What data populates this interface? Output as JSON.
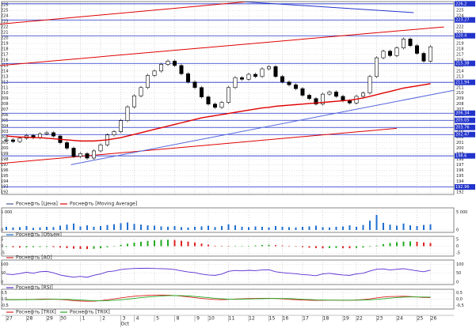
{
  "chart_data": {
    "type": "candlestick",
    "series": [
      {
        "name": "Роснефть [Цена]",
        "color": "#4a5a8a",
        "values": [
          201.5,
          201.2,
          201.8,
          202.3,
          201.9,
          202.6,
          202.8,
          202.2,
          201.0,
          200.0,
          198.5,
          199.0,
          198.2,
          199.5,
          200.6,
          202.4,
          203.0,
          205.0,
          207.5,
          209.5,
          211.0,
          213.2,
          214.0,
          215.2,
          215.8,
          215.0,
          213.5,
          212.0,
          211.0,
          209.3,
          208.0,
          207.4,
          208.3,
          211.0,
          212.8,
          212.5,
          213.4,
          213.0,
          214.4,
          214.8,
          213.0,
          212.0,
          211.5,
          210.8,
          209.6,
          209.0,
          208.0,
          209.8,
          210.2,
          209.4,
          208.6,
          208.2,
          209.4,
          210.0,
          213.0,
          216.4,
          217.6,
          216.8,
          218.2,
          219.8,
          218.6,
          217.2,
          215.8,
          218.4
        ]
      },
      {
        "name": "Роснефть [Moving Average]",
        "color": "#e00000",
        "values": [
          202.2,
          202.1,
          202.0,
          202.0,
          201.9,
          201.9,
          201.8,
          201.7,
          201.6,
          201.5,
          201.4,
          201.3,
          201.3,
          201.3,
          201.4,
          201.5,
          201.7,
          201.9,
          202.2,
          202.5,
          202.8,
          203.1,
          203.4,
          203.7,
          204.0,
          204.3,
          204.6,
          204.9,
          205.2,
          205.5,
          205.7,
          205.9,
          206.1,
          206.3,
          206.5,
          206.7,
          206.9,
          207.1,
          207.3,
          207.4,
          207.6,
          207.7,
          207.8,
          207.9,
          208.0,
          208.1,
          208.2,
          208.3,
          208.4,
          208.5,
          208.6,
          208.7,
          208.9,
          209.1,
          209.4,
          209.7,
          210.0,
          210.3,
          210.6,
          210.9,
          211.1,
          211.3,
          211.5,
          211.7
        ]
      }
    ],
    "ylim": [
      191.6,
      226.6
    ],
    "yticks": [
      192,
      193,
      194,
      195,
      196,
      197,
      198,
      199,
      200,
      201,
      202,
      203,
      204,
      205,
      206,
      207,
      208,
      209,
      210,
      211,
      212,
      213,
      214,
      215,
      216,
      217,
      218,
      219,
      220,
      221,
      222,
      223,
      224,
      225,
      226
    ],
    "grid": true,
    "levels": [
      226.2,
      223.27,
      220.4,
      215.38,
      211.94,
      206.34,
      205.05,
      203.76,
      202.47,
      198.6,
      192.96
    ],
    "level_color": "#2233cc",
    "trendlines": [
      {
        "color": "#e00000",
        "x": [
          -1,
          35.5
        ],
        "y": [
          222.5,
          226.55
        ]
      },
      {
        "color": "#2233cc",
        "x": [
          35.5,
          60.5
        ],
        "y": [
          226.55,
          224.6
        ]
      },
      {
        "color": "#e00000",
        "x": [
          -1,
          65
        ],
        "y": [
          215,
          222
        ]
      },
      {
        "color": "#e00000",
        "x": [
          -1,
          58
        ],
        "y": [
          197.2,
          203.6
        ]
      },
      {
        "color": "#5566dd",
        "x": [
          9.6,
          66.5
        ],
        "y": [
          197,
          210.5
        ]
      }
    ],
    "xticks": [
      {
        "value": 0,
        "label": "27"
      },
      {
        "value": 3,
        "label": "28"
      },
      {
        "value": 6,
        "label": "29"
      },
      {
        "value": 8,
        "label": "30"
      },
      {
        "value": 11,
        "label": "1"
      },
      {
        "value": 14,
        "label": "2"
      },
      {
        "value": 17,
        "label": "3"
      },
      {
        "value": 19,
        "label": "4"
      },
      {
        "value": 22,
        "label": "5"
      },
      {
        "value": 25,
        "label": "8"
      },
      {
        "value": 28,
        "label": "9"
      },
      {
        "value": 30,
        "label": "10"
      },
      {
        "value": 33,
        "label": "11"
      },
      {
        "value": 36,
        "label": "12"
      },
      {
        "value": 39,
        "label": "15"
      },
      {
        "value": 41,
        "label": "16"
      },
      {
        "value": 44,
        "label": "17"
      },
      {
        "value": 47,
        "label": "18"
      },
      {
        "value": 50,
        "label": "19"
      },
      {
        "value": 52,
        "label": "22"
      },
      {
        "value": 55,
        "label": "23"
      },
      {
        "value": 58,
        "label": "24"
      },
      {
        "value": 61,
        "label": "25"
      },
      {
        "value": 63,
        "label": "26"
      }
    ],
    "month_label": {
      "value": 17,
      "label": "Oct"
    },
    "panels": [
      {
        "type": "bar",
        "ylim": [
          0,
          5500
        ],
        "yticks": [
          {
            "value": 5000,
            "label": "5 000"
          },
          0
        ],
        "series": [
          {
            "name": "Роснефть [Объем]",
            "color": "#1f6fd0",
            "values": [
              900,
              700,
              800,
              1100,
              600,
              700,
              900,
              800,
              1200,
              1500,
              1800,
              1000,
              1300,
              900,
              1100,
              1400,
              1600,
              1900,
              2100,
              1700,
              1500,
              1300,
              1200,
              1000,
              900,
              1100,
              800,
              700,
              900,
              1000,
              1200,
              800,
              1100,
              1600,
              1300,
              900,
              800,
              1000,
              900,
              700,
              1100,
              900,
              800,
              700,
              900,
              1000,
              1200,
              800,
              700,
              900,
              1000,
              1300,
              900,
              1400,
              2600,
              4200,
              2000,
              1500,
              1200,
              1800,
              1300,
              1100,
              1400,
              1600
            ]
          }
        ]
      },
      {
        "type": "ao",
        "ylim": [
          -5.5,
          5.5
        ],
        "yticks": [
          5,
          0,
          -5
        ],
        "up_color": "#22aa22",
        "down_color": "#dd2222",
        "series": [
          {
            "name": "Роснефть [AO]",
            "color": "#dd2222",
            "values": [
              -0.5,
              -0.8,
              -1.0,
              -0.9,
              -0.7,
              -0.6,
              -0.5,
              -0.7,
              -1.0,
              -1.4,
              -1.8,
              -2.0,
              -2.1,
              -1.9,
              -1.5,
              -0.8,
              0.2,
              1.0,
              1.8,
              2.6,
              3.3,
              3.9,
              4.3,
              4.6,
              4.7,
              4.5,
              4.0,
              3.4,
              2.7,
              1.9,
              1.1,
              0.4,
              -0.1,
              -0.3,
              -0.2,
              0,
              0.3,
              0.6,
              0.9,
              1.0,
              0.8,
              0.5,
              0.1,
              -0.3,
              -0.7,
              -1.1,
              -1.4,
              -1.5,
              -1.4,
              -1.3,
              -1.4,
              -1.5,
              -1.3,
              -1.0,
              -0.4,
              0.5,
              1.5,
              2.3,
              2.9,
              3.4,
              3.5,
              3.2,
              2.7,
              2.4
            ]
          }
        ]
      },
      {
        "type": "line",
        "ylim": [
          0,
          110
        ],
        "yticks": [
          100,
          50,
          0
        ],
        "series": [
          {
            "name": "Роснефть [RSI]",
            "color": "#5a2ad0",
            "values": [
              45,
              42,
              48,
              55,
              50,
              58,
              60,
              52,
              40,
              33,
              28,
              32,
              27,
              38,
              46,
              58,
              62,
              70,
              74,
              76,
              77,
              78,
              76,
              75,
              74,
              70,
              63,
              57,
              53,
              45,
              40,
              38,
              45,
              60,
              65,
              63,
              66,
              64,
              68,
              69,
              58,
              53,
              50,
              47,
              42,
              40,
              36,
              46,
              49,
              44,
              40,
              38,
              46,
              50,
              62,
              72,
              74,
              68,
              72,
              75,
              69,
              63,
              58,
              67
            ]
          }
        ]
      },
      {
        "type": "line",
        "ylim": [
          -0.6,
          0.6
        ],
        "yticks": [
          {
            "value": 0.5,
            "label": "0,5"
          },
          {
            "value": 0,
            "label": "0,0"
          },
          {
            "value": -0.5,
            "label": "-0,5"
          }
        ],
        "series": [
          {
            "name": "Роснефть [TRIX]",
            "color": "#dd2222",
            "values": [
              -0.05,
              -0.05,
              -0.04,
              -0.02,
              -0.02,
              0,
              0.01,
              0,
              -0.03,
              -0.07,
              -0.12,
              -0.15,
              -0.17,
              -0.16,
              -0.12,
              -0.05,
              0.02,
              0.1,
              0.17,
              0.23,
              0.27,
              0.3,
              0.32,
              0.33,
              0.32,
              0.29,
              0.24,
              0.18,
              0.12,
              0.06,
              0.01,
              -0.03,
              -0.04,
              -0.02,
              0.01,
              0.03,
              0.05,
              0.06,
              0.07,
              0.07,
              0.05,
              0.02,
              -0.01,
              -0.04,
              -0.07,
              -0.09,
              -0.1,
              -0.09,
              -0.08,
              -0.08,
              -0.09,
              -0.09,
              -0.07,
              -0.04,
              0.02,
              0.1,
              0.17,
              0.21,
              0.22,
              0.23,
              0.21,
              0.17,
              0.13,
              0.12
            ]
          },
          {
            "name": "Роснефть [TRIX]",
            "color": "#22aa22",
            "values": [
              -0.04,
              -0.04,
              -0.04,
              -0.04,
              -0.03,
              -0.03,
              -0.02,
              -0.01,
              -0.01,
              -0.02,
              -0.04,
              -0.07,
              -0.1,
              -0.12,
              -0.13,
              -0.12,
              -0.09,
              -0.05,
              0,
              0.06,
              0.12,
              0.17,
              0.21,
              0.25,
              0.28,
              0.29,
              0.28,
              0.26,
              0.22,
              0.17,
              0.12,
              0.07,
              0.03,
              0,
              -0.01,
              0,
              0.01,
              0.03,
              0.04,
              0.05,
              0.06,
              0.05,
              0.04,
              0.02,
              -0.01,
              -0.03,
              -0.06,
              -0.07,
              -0.08,
              -0.08,
              -0.08,
              -0.08,
              -0.08,
              -0.07,
              -0.05,
              -0.02,
              0.03,
              0.08,
              0.13,
              0.16,
              0.18,
              0.18,
              0.17,
              0.16
            ]
          }
        ]
      }
    ]
  }
}
